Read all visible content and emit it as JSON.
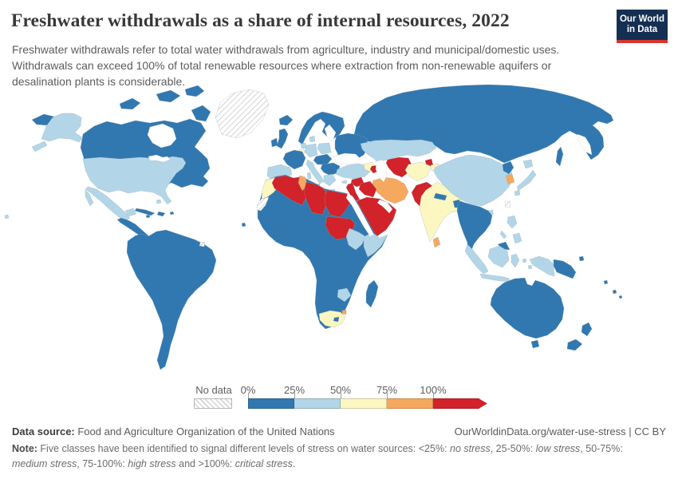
{
  "header": {
    "title": "Freshwater withdrawals as a share of internal resources, 2022",
    "subtitle": "Freshwater withdrawals refer to total water withdrawals from agriculture, industry and municipal/domestic uses. Withdrawals can exceed 100% of total renewable resources where extraction from non-renewable aquifers or desalination plants is considerable.",
    "logo": {
      "line1": "Our World",
      "line2": "in Data"
    }
  },
  "palette": {
    "no_stress": "#3178b0",
    "low_stress": "#b2d6e8",
    "medium_stress": "#fcf7c1",
    "high_stress": "#f6a85e",
    "critical_stress": "#d2222a",
    "logo_bg": "#142f52",
    "logo_stripe": "#d8352e"
  },
  "legend": {
    "no_data_label": "No data",
    "ticks": [
      "0%",
      "25%",
      "50%",
      "75%",
      "100%"
    ]
  },
  "chart_data": {
    "type": "choropleth-map",
    "title": "Freshwater withdrawals as a share of internal resources, 2022",
    "unit": "%",
    "bins": [
      {
        "range": "0-25%",
        "class": "no_stress",
        "color": "#3178b0"
      },
      {
        "range": "25-50%",
        "class": "low_stress",
        "color": "#b2d6e8"
      },
      {
        "range": "50-75%",
        "class": "medium_stress",
        "color": "#fcf7c1"
      },
      {
        "range": "75-100%",
        "class": "high_stress",
        "color": "#f6a85e"
      },
      {
        "range": ">100%",
        "class": "critical_stress",
        "color": "#d2222a"
      },
      {
        "range": "No data",
        "class": "no_data",
        "color": "hatched"
      }
    ],
    "legend_position": "bottom",
    "regions_by_class": {
      "no_stress": [
        "Canada",
        "Central America",
        "Cuba",
        "South America",
        "Russia",
        "Scandinavia",
        "Iceland",
        "UK",
        "Ireland",
        "France",
        "Eastern Europe",
        "Balkans",
        "Sub-Saharan Africa",
        "Madagascar",
        "Nepal",
        "Bangladesh",
        "Mainland Southeast Asia",
        "Malaysia",
        "Papua New Guinea",
        "Australia",
        "New Zealand",
        "North Korea",
        "Lesotho"
      ],
      "low_stress": [
        "United States",
        "Alaska",
        "Mexico",
        "Spain",
        "Portugal",
        "Germany",
        "Poland",
        "Italy",
        "Greece",
        "Turkey",
        "Kazakhstan",
        "China",
        "Japan",
        "Indonesia",
        "Philippines",
        "Ethiopia",
        "Somalia",
        "Zimbabwe"
      ],
      "medium_stress": [
        "Morocco",
        "South Africa",
        "India",
        "Afghanistan",
        "Belgium",
        "Armenia/Georgia",
        "Kyrgyzstan"
      ],
      "high_stress": [
        "Iran",
        "Tunisia",
        "South Korea",
        "Sri Lanka",
        "Eswatini"
      ],
      "critical_stress": [
        "Algeria",
        "Libya",
        "Egypt",
        "Sudan",
        "Saudi Arabia",
        "Yemen",
        "Oman",
        "Iraq",
        "Syria",
        "Jordan/Israel",
        "Pakistan",
        "Turkmenistan",
        "Uzbekistan",
        "Azerbaijan"
      ],
      "no_data": [
        "Greenland",
        "Western Sahara",
        "French Guiana",
        "Taiwan"
      ]
    }
  },
  "map": {
    "regions": {
      "russia": "no_stress",
      "scandinavia": "no_stress",
      "iceland": "no_stress",
      "uk": "no_stress",
      "ireland": "no_stress",
      "eastern_europe": "no_stress",
      "central_europe": "no_stress",
      "balkans": "no_stress",
      "france": "no_stress",
      "greece": "low_stress",
      "crete": "low_stress",
      "poland": "low_stress",
      "germany": "low_stress",
      "denmark": "low_stress",
      "netherlands": "low_stress",
      "belgium": "medium_stress",
      "iberia": "low_stress",
      "italy": "low_stress",
      "sicily": "low_stress",
      "sardinia": "low_stress",
      "turkey": "low_stress",
      "cyprus": "low_stress",
      "caucasus": "medium_stress",
      "azerbaijan": "critical_stress",
      "kazakhstan": "low_stress",
      "turkmenistan_uzbekistan": "critical_stress",
      "tajikistan": "critical_stress",
      "kyrgyzstan": "medium_stress",
      "iran": "high_stress",
      "afghanistan": "medium_stress",
      "pakistan": "critical_stress",
      "syria": "critical_stress",
      "iraq": "critical_stress",
      "levant": "critical_stress",
      "arabian_peninsula": "critical_stress",
      "india": "medium_stress",
      "nepal": "no_stress",
      "bangladesh": "no_stress",
      "sri_lanka": "high_stress",
      "china": "low_stress",
      "north_korea": "no_stress",
      "south_korea": "high_stress",
      "japan": "low_stress",
      "taiwan": "no_data",
      "hainan": "low_stress",
      "se_asia": "no_stress",
      "malaysia_borneo": "no_stress",
      "sumatra": "low_stress",
      "java": "low_stress",
      "borneo": "low_stress",
      "sulawesi": "low_stress",
      "maluku": "low_stress",
      "philippines": "low_stress",
      "palawan": "low_stress",
      "west_new_guinea": "low_stress",
      "papua_new_guinea": "no_stress",
      "pacific_islands": "no_stress",
      "australia": "no_stress",
      "tasmania": "no_stress",
      "new_zealand": "no_stress",
      "africa_sub_saharan": "no_stress",
      "morocco": "medium_stress",
      "western_sahara": "no_data",
      "algeria": "critical_stress",
      "tunisia": "high_stress",
      "libya": "critical_stress",
      "egypt": "critical_stress",
      "sudan": "critical_stress",
      "ethiopia": "low_stress",
      "somalia": "low_stress",
      "zimbabwe": "low_stress",
      "south_africa": "medium_stress",
      "lesotho": "no_stress",
      "eswatini": "high_stress",
      "madagascar": "no_stress",
      "cape_verde": "no_stress",
      "canada": "no_stress",
      "greenland": "no_data",
      "alaska": "low_stress",
      "usa": "low_stress",
      "mexico": "low_stress",
      "central_america": "no_stress",
      "cuba": "no_stress",
      "hispaniola": "no_stress",
      "jamaica": "no_stress",
      "puerto_rico": "no_stress",
      "bahamas": "low_stress",
      "south_america": "no_stress",
      "french_guiana": "no_data",
      "hawaii": "low_stress"
    }
  },
  "footer": {
    "source_label": "Data source:",
    "source_value": " Food and Agriculture Organization of the United Nations",
    "link": "OurWorldinData.org/water-use-stress | CC BY",
    "note_parts": [
      {
        "text": "Note: ",
        "bold": true
      },
      {
        "text": "Five classes have been identified to signal different levels of stress on water sources: <25%: "
      },
      {
        "text": "no stress",
        "italic": true
      },
      {
        "text": ", 25-50%: "
      },
      {
        "text": "low stress",
        "italic": true
      },
      {
        "text": ", 50-75%: "
      },
      {
        "text": "medium stress",
        "italic": true
      },
      {
        "text": ", 75-100%: "
      },
      {
        "text": "high stress",
        "italic": true
      },
      {
        "text": " and >100%: "
      },
      {
        "text": "critical stress",
        "italic": true
      },
      {
        "text": "."
      }
    ]
  }
}
